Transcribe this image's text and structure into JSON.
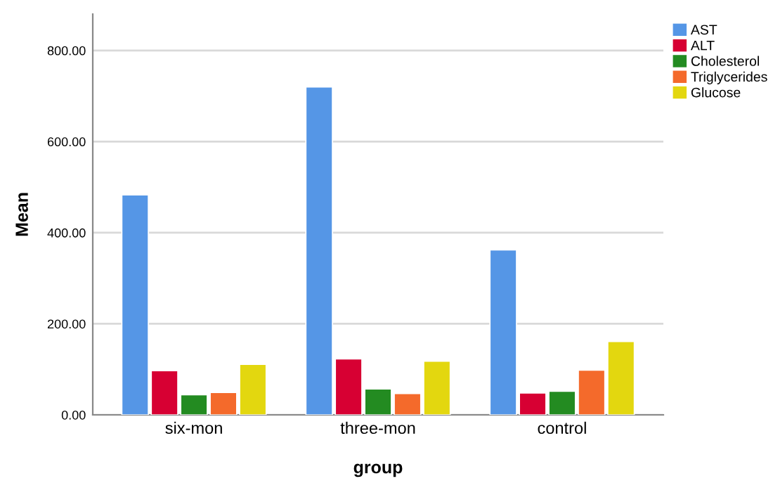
{
  "chart_data": {
    "type": "bar",
    "xlabel": "group",
    "ylabel": "Mean",
    "categories": [
      "six-mon",
      "three-mon",
      "control"
    ],
    "series": [
      {
        "name": "AST",
        "color": "#5596e6",
        "values": [
          483,
          720,
          362
        ]
      },
      {
        "name": "ALT",
        "color": "#d70033",
        "values": [
          97,
          123,
          48
        ]
      },
      {
        "name": "Cholesterol",
        "color": "#238b21",
        "values": [
          44,
          57,
          52
        ]
      },
      {
        "name": "Triglycerides",
        "color": "#f46a2b",
        "values": [
          49,
          47,
          98
        ]
      },
      {
        "name": "Glucose",
        "color": "#e3d70f",
        "values": [
          111,
          118,
          161
        ]
      }
    ],
    "ylim": [
      0,
      880
    ],
    "yticks": [
      {
        "value": 0,
        "label": "0.00"
      },
      {
        "value": 200,
        "label": "200.00"
      },
      {
        "value": 400,
        "label": "400.00"
      },
      {
        "value": 600,
        "label": "600.00"
      },
      {
        "value": 800,
        "label": "800.00"
      }
    ],
    "grid": "y",
    "legend": "top right"
  }
}
